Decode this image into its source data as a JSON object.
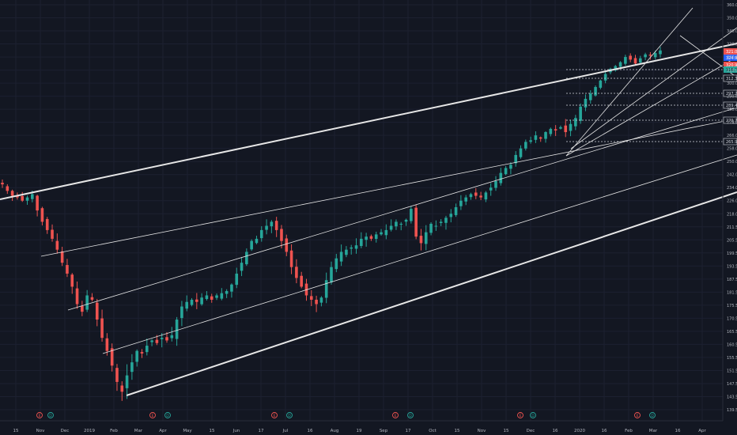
{
  "theme": {
    "background": "#131722",
    "grid": "#1c2030",
    "axis_text": "#b2b5be",
    "up_color": "#26a69a",
    "down_color": "#ef5350",
    "line_color": "#e6e6e6"
  },
  "chart_data": {
    "type": "candlestick",
    "x_tick_labels": [
      "15",
      "Nov",
      "Dec",
      "2019",
      "Feb",
      "Mar",
      "Apr",
      "May",
      "15",
      "Jun",
      "17",
      "Jul",
      "16",
      "Aug",
      "19",
      "Sep",
      "17",
      "Oct",
      "15",
      "Nov",
      "15",
      "Dec",
      "16",
      "2020",
      "16",
      "Feb",
      "Mar",
      "16",
      "Apr"
    ],
    "y_tick_labels": [
      "360.00",
      "350.00",
      "340.00",
      "330.00",
      "320.00",
      "310.00",
      "300.00",
      "290.00",
      "280.00",
      "274.00",
      "266.00",
      "258.00",
      "250.00",
      "242.00",
      "234.00",
      "226.00",
      "218.00",
      "211.50",
      "205.50",
      "199.50",
      "193.50",
      "187.50",
      "181.50",
      "175.50",
      "170.50",
      "165.50",
      "160.50",
      "155.50",
      "151.50",
      "147.50",
      "143.50",
      "139.50"
    ],
    "price_labels": [
      {
        "text": "321.05",
        "color": "#ef5350"
      },
      {
        "text": "324.95",
        "color": "#2962ff"
      },
      {
        "text": "320.92",
        "color": "#ef5350"
      },
      {
        "text": "316.71",
        "color": "#26a69a"
      },
      {
        "text": "312.32",
        "color": "#131722"
      },
      {
        "text": "297.24",
        "color": "#131722"
      },
      {
        "text": "289.41",
        "color": "#131722"
      },
      {
        "text": "279.73",
        "color": "#131722"
      },
      {
        "text": "265.95",
        "color": "#131722"
      }
    ],
    "y_range": [
      139.5,
      360
    ],
    "timeline_markers": [
      {
        "type": "E",
        "color": "#ef5350"
      },
      {
        "type": "D",
        "color": "#26a69a"
      },
      {
        "type": "E",
        "color": "#ef5350"
      },
      {
        "type": "D",
        "color": "#26a69a"
      },
      {
        "type": "E",
        "color": "#ef5350"
      },
      {
        "type": "D",
        "color": "#26a69a"
      },
      {
        "type": "E",
        "color": "#ef5350"
      },
      {
        "type": "D",
        "color": "#26a69a"
      },
      {
        "type": "E",
        "color": "#ef5350"
      },
      {
        "type": "D",
        "color": "#26a69a"
      },
      {
        "type": "E",
        "color": "#ef5350"
      },
      {
        "type": "D",
        "color": "#26a69a"
      }
    ],
    "close_path_values": [
      236,
      232,
      229,
      228,
      226,
      228,
      230,
      220,
      214,
      210,
      206,
      201,
      195,
      190,
      184,
      176,
      173,
      180,
      178,
      170,
      163,
      158,
      153,
      148,
      145,
      150,
      154,
      158,
      157,
      160,
      162,
      161,
      163,
      162,
      164,
      170,
      175,
      177,
      178,
      177,
      179,
      180,
      178,
      180,
      181,
      182,
      185,
      190,
      195,
      200,
      205,
      206,
      210,
      212,
      214,
      210,
      205,
      200,
      193,
      188,
      184,
      180,
      178,
      176,
      179,
      187,
      193,
      197,
      200,
      201,
      202,
      203,
      206,
      207,
      206,
      208,
      209,
      210,
      212,
      214,
      213,
      215,
      221,
      207,
      204,
      209,
      213,
      212,
      214,
      216,
      218,
      222,
      226,
      228,
      230,
      229,
      228,
      231,
      234,
      238,
      243,
      246,
      248,
      254,
      258,
      262,
      263,
      266,
      264,
      268,
      270,
      269,
      271,
      268,
      273,
      276,
      282,
      288,
      292,
      297,
      302,
      307,
      311,
      313,
      316,
      320,
      318,
      315,
      319,
      322,
      321,
      323,
      325
    ]
  }
}
